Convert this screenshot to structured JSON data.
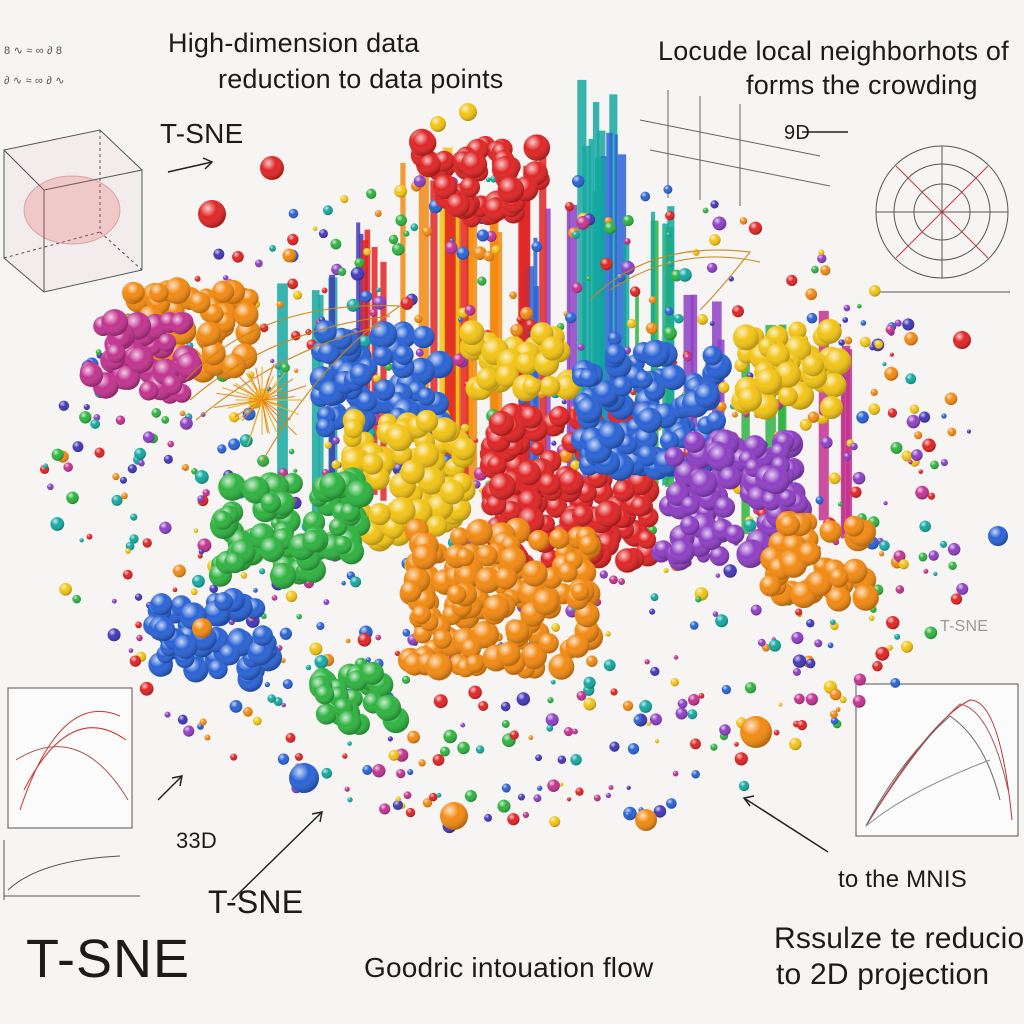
{
  "labels": {
    "top_left_line1": "High-dimension data",
    "top_left_line2": "reduction to data points",
    "top_right_line1": "Locude local neighborhots of",
    "top_right_line2": "forms the crowding",
    "tsne_upper": "T-SNE",
    "nine_d": "9D",
    "thirty_three_d": "33D",
    "tsne_lower": "T-SNE",
    "tsne_large": "T-SNE",
    "flow_caption": "Goodric intouation flow",
    "to_the_mnis": "to the MNIS",
    "result_line1": "Rssulze te reducio",
    "result_line2": "to 2D projection",
    "tsne_faint": "T-SNE",
    "scribble_1": "8 ∿ ≈ ∞ ∂ 8",
    "scribble_2": "∂ ∿ ≈ ∞ ∂ ∿"
  },
  "colors": {
    "red": "#e02525",
    "orange": "#f28a12",
    "yellow": "#f2c416",
    "green": "#2fb340",
    "teal": "#14a8a0",
    "blue": "#2a63d6",
    "indigo": "#4338b8",
    "purple": "#8e3fc4",
    "magenta": "#c2338f"
  }
}
